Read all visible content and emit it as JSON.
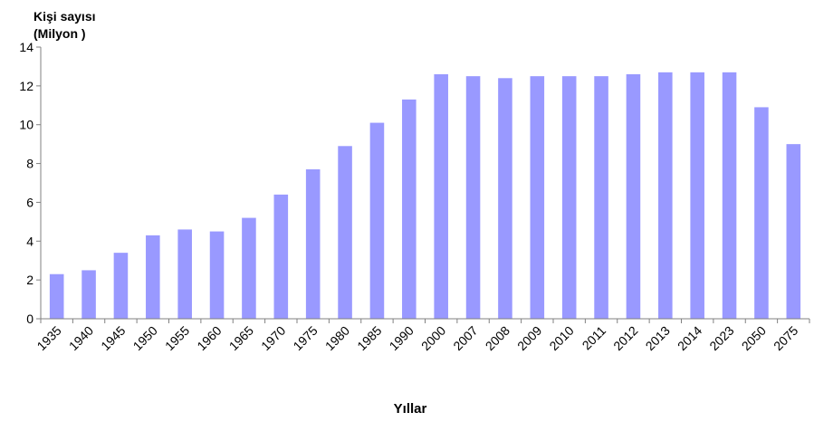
{
  "chart_data": {
    "type": "bar",
    "title": "",
    "ylabel_lines": [
      "Kişi sayısı",
      "(Milyon )"
    ],
    "xlabel": "Yıllar",
    "categories": [
      "1935",
      "1940",
      "1945",
      "1950",
      "1955",
      "1960",
      "1965",
      "1970",
      "1975",
      "1980",
      "1985",
      "1990",
      "2000",
      "2007",
      "2008",
      "2009",
      "2010",
      "2011",
      "2012",
      "2013",
      "2014",
      "2023",
      "2050",
      "2075"
    ],
    "values": [
      2.3,
      2.5,
      3.4,
      4.3,
      4.6,
      4.5,
      5.2,
      6.4,
      7.7,
      8.9,
      10.1,
      11.3,
      12.6,
      12.5,
      12.4,
      12.5,
      12.5,
      12.5,
      12.6,
      12.7,
      12.7,
      12.7,
      10.9,
      9.0
    ],
    "ylim": [
      0,
      14
    ],
    "yticks": [
      0,
      2,
      4,
      6,
      8,
      10,
      12,
      14
    ],
    "grid": false,
    "bar_color": "#9999ff",
    "axis_color": "#808080"
  }
}
